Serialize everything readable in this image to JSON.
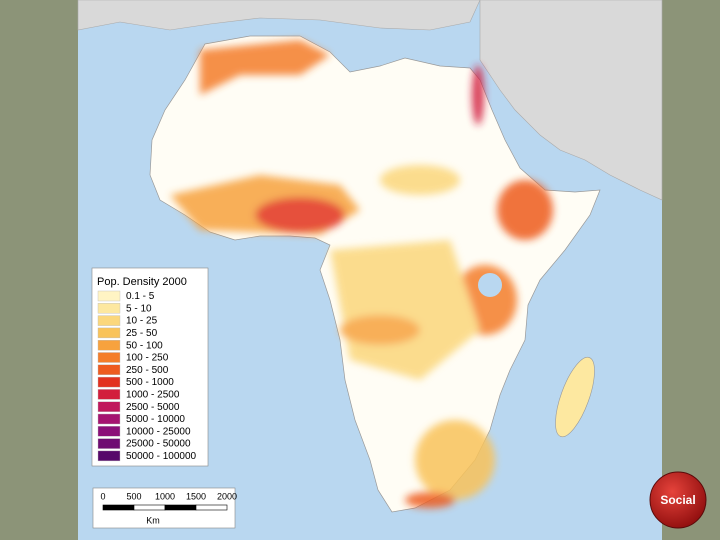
{
  "legend": {
    "title": "Pop. Density 2000",
    "items": [
      {
        "label": "0.1 - 5",
        "color": "#fff4c4"
      },
      {
        "label": "5 - 10",
        "color": "#fde8a0"
      },
      {
        "label": "10 - 25",
        "color": "#fbd77c"
      },
      {
        "label": "25 - 50",
        "color": "#f9c35a"
      },
      {
        "label": "50 - 100",
        "color": "#f7a23e"
      },
      {
        "label": "100 - 250",
        "color": "#f47d2a"
      },
      {
        "label": "250 - 500",
        "color": "#ee5b1f"
      },
      {
        "label": "500 - 1000",
        "color": "#e2311f"
      },
      {
        "label": "1000 - 2500",
        "color": "#d21e3c"
      },
      {
        "label": "2500 - 5000",
        "color": "#c0185c"
      },
      {
        "label": "5000 - 10000",
        "color": "#a51470"
      },
      {
        "label": "10000 - 25000",
        "color": "#8b1078"
      },
      {
        "label": "25000 - 50000",
        "color": "#6f0c72"
      },
      {
        "label": "50000 - 100000",
        "color": "#56086a"
      }
    ]
  },
  "scale_bar": {
    "labels": [
      0,
      500,
      1000,
      1500,
      2000
    ],
    "unit": "Km"
  },
  "button": {
    "label": "Social"
  }
}
